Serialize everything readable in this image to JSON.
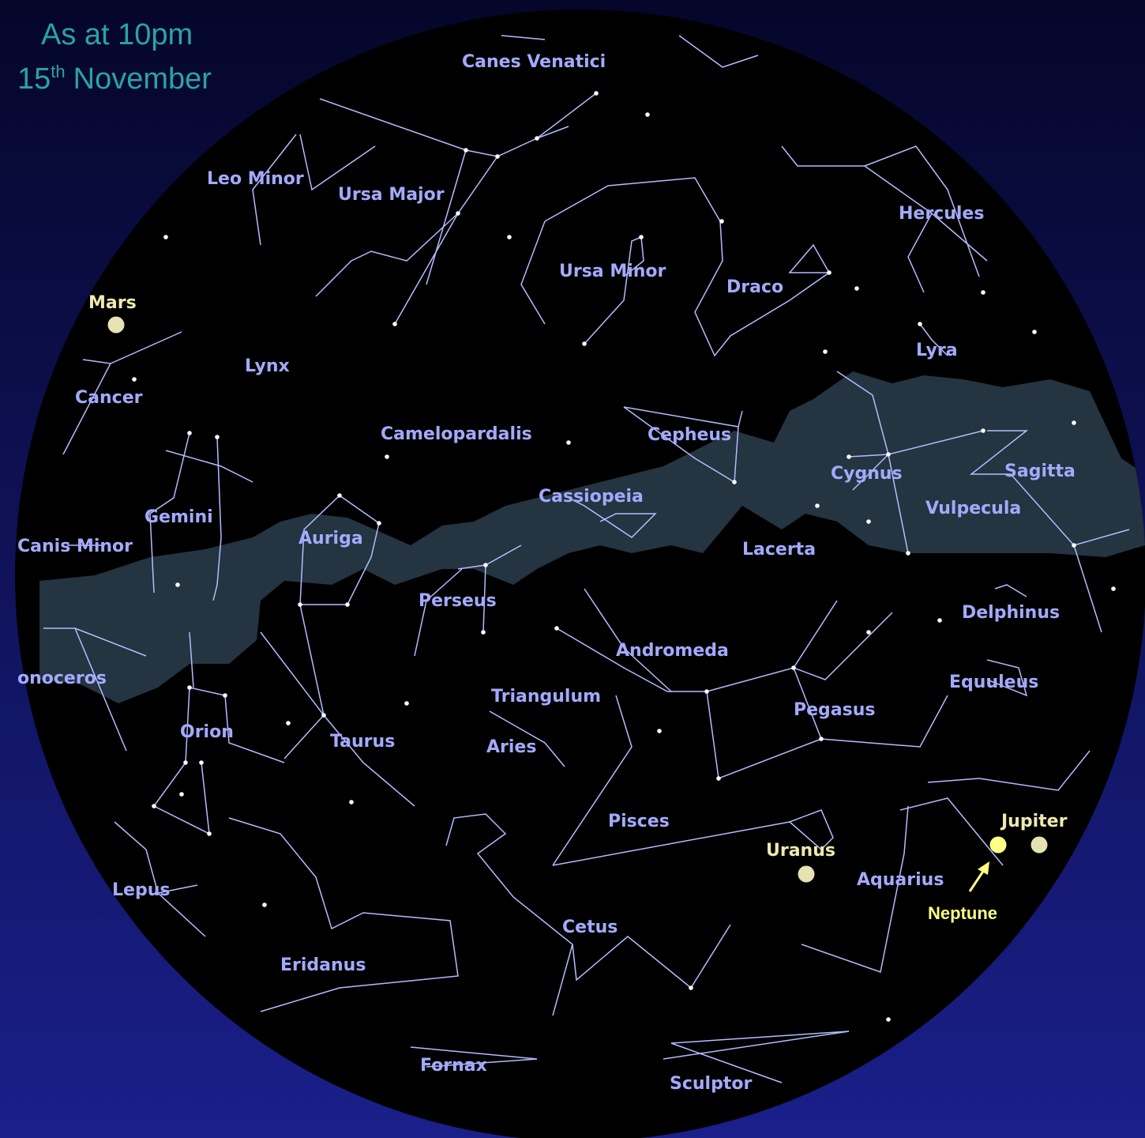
{
  "caption": {
    "line1": "As at 10pm",
    "day": "15",
    "day_suffix": "th",
    "month": "November"
  },
  "constellations": [
    "Canes Venatici",
    "Leo Minor",
    "Ursa Major",
    "Hercules",
    "Ursa Minor",
    "Draco",
    "Lyra",
    "Cancer",
    "Lynx",
    "Camelopardalis",
    "Cepheus",
    "Cygnus",
    "Sagitta",
    "Vulpecula",
    "Gemini",
    "Cassiopeia",
    "Canis Minor",
    "Auriga",
    "Lacerta",
    "Perseus",
    "Delphinus",
    "Andromeda",
    "onoceros",
    "Equuleus",
    "Triangulum",
    "Pegasus",
    "Orion",
    "Taurus",
    "Aries",
    "Pisces",
    "Aquarius",
    "Lepus",
    "Cetus",
    "Eridanus",
    "Fornax",
    "Sculptor"
  ],
  "planets": [
    "Mars",
    "Jupiter",
    "Uranus",
    "Neptune"
  ]
}
